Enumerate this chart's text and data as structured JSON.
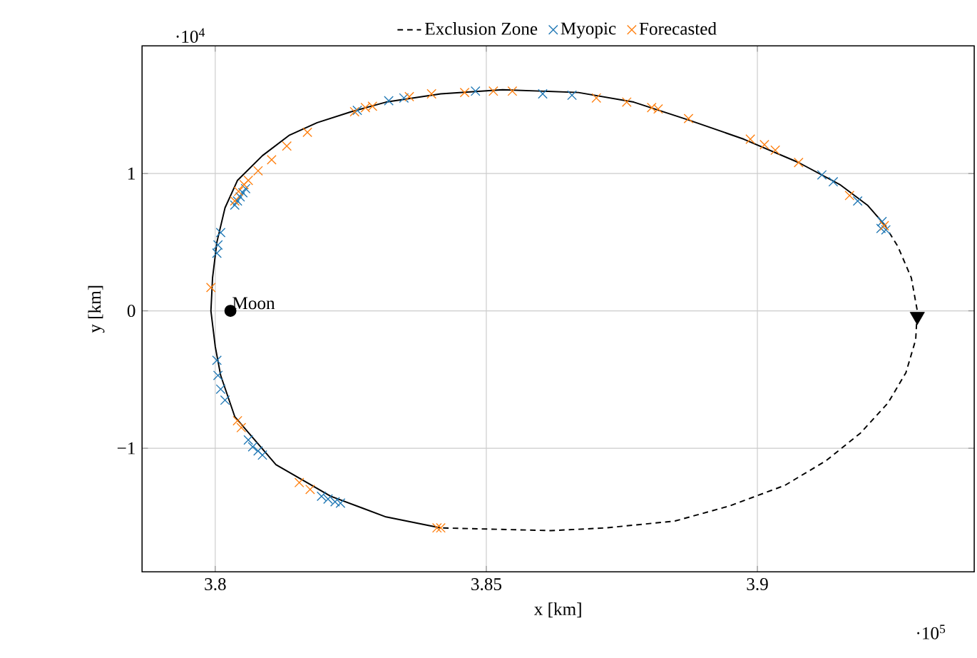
{
  "chart_data": {
    "type": "scatter",
    "xlabel": "x [km]",
    "ylabel": "y [km]",
    "xlim": [
      3.7865,
      3.94
    ],
    "ylim": [
      -1.9,
      1.93
    ],
    "xticks": [
      3.8,
      3.85,
      3.9
    ],
    "yticks": [
      {
        "value": -1,
        "label": "−1"
      },
      0,
      1
    ],
    "grid": true,
    "legend": "top",
    "annotations": [
      "·10$^{4}$",
      "·10$^{5}$",
      {
        "text": "Moon",
        "x": 3.8028,
        "y": 0
      }
    ],
    "series": [
      {
        "type": "line",
        "color": "#000000",
        "line_style": "solid",
        "marker": "none",
        "x": [
          3.8416,
          3.8315,
          3.8213,
          3.8112,
          3.8036,
          3.801,
          3.8,
          3.7992,
          3.7995,
          3.8003,
          3.8018,
          3.8041,
          3.8087,
          3.8137,
          3.8188,
          3.8251,
          3.8315,
          3.8416,
          3.853,
          3.867,
          3.8772,
          3.8873,
          3.8975,
          3.9076,
          3.9152,
          3.9203,
          3.9234
        ],
        "values": [
          -1.58,
          -1.5,
          -1.35,
          -1.12,
          -0.77,
          -0.47,
          -0.26,
          0,
          0.24,
          0.5,
          0.75,
          0.95,
          1.13,
          1.28,
          1.37,
          1.45,
          1.52,
          1.58,
          1.61,
          1.59,
          1.52,
          1.39,
          1.25,
          1.08,
          0.92,
          0.77,
          0.63
        ]
      },
      {
        "type": "line",
        "name": "Exclusion Zone",
        "color": "#000000",
        "line_style": "dashed",
        "marker": "none",
        "x": [
          3.9234,
          3.9259,
          3.9284,
          3.9295,
          3.9292,
          3.9274,
          3.9241,
          3.919,
          3.9127,
          3.9051,
          3.8949,
          3.8848,
          3.8721,
          3.8619,
          3.8518,
          3.8416
        ],
        "values": [
          0.63,
          0.47,
          0.24,
          0,
          -0.21,
          -0.45,
          -0.67,
          -0.89,
          -1.09,
          -1.27,
          -1.42,
          -1.53,
          -1.58,
          -1.6,
          -1.59,
          -1.58
        ]
      },
      {
        "type": "scatter",
        "name": "Myopic",
        "color": "#1f77b4",
        "marker": "cross",
        "x": [
          3.801,
          3.8005,
          3.8003,
          3.8036,
          3.8041,
          3.8046,
          3.8051,
          3.8056,
          3.8262,
          3.832,
          3.8348,
          3.848,
          3.8604,
          3.8658,
          3.9119,
          3.914,
          3.9185,
          3.9228,
          3.923,
          3.9237,
          3.8003,
          3.8005,
          3.801,
          3.8018,
          3.8061,
          3.8069,
          3.8079,
          3.8087,
          3.8196,
          3.8208,
          3.8221,
          3.8231
        ],
        "values": [
          0.57,
          0.48,
          0.42,
          0.77,
          0.8,
          0.83,
          0.86,
          0.89,
          1.46,
          1.53,
          1.55,
          1.6,
          1.58,
          1.57,
          0.99,
          0.94,
          0.8,
          0.6,
          0.65,
          0.59,
          -0.36,
          -0.47,
          -0.57,
          -0.65,
          -0.94,
          -0.99,
          -1.02,
          -1.05,
          -1.35,
          -1.37,
          -1.39,
          -1.4
        ]
      },
      {
        "type": "scatter",
        "name": "Forecasted",
        "color": "#ff7f0e",
        "marker": "cross",
        "x": [
          3.7992,
          3.8043,
          3.8036,
          3.8053,
          3.8061,
          3.8079,
          3.8104,
          3.8132,
          3.817,
          3.8257,
          3.8277,
          3.829,
          3.8358,
          3.8399,
          3.846,
          3.8513,
          3.8548,
          3.8703,
          3.8759,
          3.8805,
          3.8817,
          3.8873,
          3.8987,
          3.9013,
          3.9033,
          3.9076,
          3.917,
          3.9234,
          3.8041,
          3.8048,
          3.8155,
          3.8175,
          3.8416,
          3.8409
        ],
        "values": [
          0.17,
          0.87,
          0.8,
          0.92,
          0.95,
          1.02,
          1.1,
          1.2,
          1.3,
          1.45,
          1.48,
          1.49,
          1.56,
          1.58,
          1.59,
          1.6,
          1.6,
          1.55,
          1.52,
          1.48,
          1.47,
          1.4,
          1.25,
          1.21,
          1.17,
          1.08,
          0.84,
          0.62,
          -0.8,
          -0.85,
          -1.25,
          -1.3,
          -1.58,
          -1.58
        ]
      },
      {
        "type": "scatter",
        "color": "#000000",
        "marker": "circle",
        "x": [
          3.8028
        ],
        "values": [
          0
        ]
      },
      {
        "type": "scatter",
        "color": "#000000",
        "marker": "triangle",
        "x": [
          3.9295
        ],
        "values": [
          -0.04
        ]
      }
    ]
  }
}
